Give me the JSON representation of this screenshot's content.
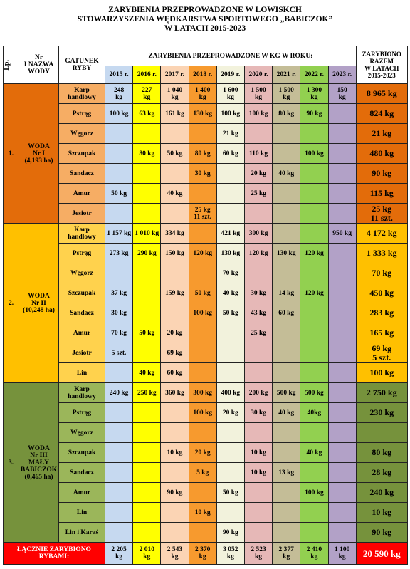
{
  "header": {
    "title": [
      "ZARYBIENIA PRZEPROWADZONE W ŁOWISKCH",
      "STOWARZYSZENIA WĘDKARSTWA SPORTOWEGO „BABICZOK”",
      "W LATACH 2015-2023"
    ]
  },
  "table": {
    "columns": {
      "lp": "Lp.",
      "water": "Nr\nI NAZWA\nWODY",
      "species": "GATUNEK\nRYBY",
      "years_title": "ZARYBIENIA PRZEPROWADZONE W KG W ROKU:",
      "total": "ZARYBIONO\nRAZEM\nW LATACH\n2015-2023"
    },
    "years": [
      "2015 r.",
      "2016 r.",
      "2017 r.",
      "2018 r.",
      "2019 r.",
      "2020 r.",
      "2021 r.",
      "2022 r.",
      "2023 r."
    ],
    "year_colors": [
      "#c6d9f0",
      "#ffff00",
      "#fbd4b4",
      "#f79a2e",
      "#f2f2dc",
      "#e6b8b7",
      "#c4bd97",
      "#92d050",
      "#b2a1c7"
    ],
    "sections": [
      {
        "lp": "1.",
        "water": "WODA\nNr I\n(4,193 ha)",
        "color": "#e36c0a",
        "species_color": "#f6ad64",
        "total_color": "#e36c0a",
        "rows": [
          {
            "species": "Karp\nhandlowy",
            "values": [
              "248\nkg",
              "227\nkg",
              "1 040\nkg",
              "1 400\nkg",
              "1 600\nkg",
              "1 500\nkg",
              "1 500\nkg",
              "1 300\nkg",
              "150\nkg"
            ],
            "total": "8 965 kg"
          },
          {
            "species": "Pstrąg",
            "values": [
              "100 kg",
              "63 kg",
              "161 kg",
              "130 kg",
              "100 kg",
              "100 kg",
              "80 kg",
              "90 kg",
              null
            ],
            "total": "824 kg"
          },
          {
            "species": "Węgorz",
            "values": [
              null,
              null,
              null,
              null,
              "21 kg",
              null,
              null,
              null,
              null
            ],
            "total": "21 kg"
          },
          {
            "species": "Szczupak",
            "values": [
              null,
              "80 kg",
              "50 kg",
              "80 kg",
              "60 kg",
              "110 kg",
              null,
              "100 kg",
              null
            ],
            "total": "480 kg"
          },
          {
            "species": "Sandacz",
            "values": [
              null,
              null,
              null,
              "30 kg",
              null,
              "20 kg",
              "40 kg",
              null,
              null
            ],
            "total": "90 kg"
          },
          {
            "species": "Amur",
            "values": [
              "50 kg",
              null,
              "40 kg",
              null,
              null,
              "25 kg",
              null,
              null,
              null
            ],
            "total": "115 kg"
          },
          {
            "species": "Jesiotr",
            "values": [
              null,
              null,
              null,
              "25 kg\n11 szt.",
              null,
              null,
              null,
              null,
              null
            ],
            "total": "25 kg\n11 szt."
          }
        ]
      },
      {
        "lp": "2.",
        "water": "WODA\nNr II\n(10,248 ha)",
        "color": "#ffc000",
        "species_color": "#ffd24d",
        "total_color": "#ffc000",
        "rows": [
          {
            "species": "Karp\nhandlowy",
            "values": [
              "1 157 kg",
              "1 010 kg",
              "334 kg",
              null,
              "421 kg",
              "300 kg",
              null,
              null,
              "950 kg"
            ],
            "total": "4 172 kg"
          },
          {
            "species": "Pstrąg",
            "values": [
              "273 kg",
              "290 kg",
              "150 kg",
              "120 kg",
              "130 kg",
              "120 kg",
              "130 kg",
              "120 kg",
              null
            ],
            "total": "1 333 kg"
          },
          {
            "species": "Węgorz",
            "values": [
              null,
              null,
              null,
              null,
              "70 kg",
              null,
              null,
              null,
              null
            ],
            "total": "70 kg"
          },
          {
            "species": "Szczupak",
            "values": [
              "37 kg",
              null,
              "159 kg",
              "50 kg",
              "40 kg",
              "30 kg",
              "14 kg",
              "120 kg",
              null
            ],
            "total": "450 kg"
          },
          {
            "species": "Sandacz",
            "values": [
              "30 kg",
              null,
              null,
              "100 kg",
              "50 kg",
              "43 kg",
              "60 kg",
              null,
              null
            ],
            "total": "283 kg"
          },
          {
            "species": "Amur",
            "values": [
              "70 kg",
              "50 kg",
              "20 kg",
              null,
              null,
              "25 kg",
              null,
              null,
              null
            ],
            "total": "165 kg"
          },
          {
            "species": "Jesiotr",
            "values": [
              "5 szt.",
              null,
              "69 kg",
              null,
              null,
              null,
              null,
              null,
              null
            ],
            "total": "69 kg\n5 szt."
          },
          {
            "species": "Lin",
            "values": [
              null,
              "40 kg",
              "60 kg",
              null,
              null,
              null,
              null,
              null,
              null
            ],
            "total": "100 kg"
          }
        ]
      },
      {
        "lp": "3.",
        "water": "WODA\nNr III\nMAŁY\nBABICZOK\n(0,465 ha)",
        "color": "#76923c",
        "species_color": "#9bb65a",
        "total_color": "#76923c",
        "rows": [
          {
            "species": "Karp\nhandlowy",
            "values": [
              "240 kg",
              "250 kg",
              "360 kg",
              "300 kg",
              "400 kg",
              "200 kg",
              "500 kg",
              "500 kg",
              null
            ],
            "total": "2 750 kg"
          },
          {
            "species": "Pstrąg",
            "values": [
              null,
              null,
              null,
              "100 kg",
              "20 kg",
              "30 kg",
              "40 kg",
              "40kg",
              null
            ],
            "total": "230 kg"
          },
          {
            "species": "Węgorz",
            "values": [
              null,
              null,
              null,
              null,
              null,
              null,
              null,
              null,
              null
            ],
            "total": null
          },
          {
            "species": "Szczupak",
            "values": [
              null,
              null,
              "10 kg",
              "20 kg",
              null,
              "10 kg",
              null,
              "40 kg",
              null
            ],
            "total": "80 kg"
          },
          {
            "species": "Sandacz",
            "values": [
              null,
              null,
              null,
              "5 kg",
              null,
              "10 kg",
              "13 kg",
              null,
              null
            ],
            "total": "28 kg"
          },
          {
            "species": "Amur",
            "values": [
              null,
              null,
              "90 kg",
              null,
              "50 kg",
              null,
              null,
              "100 kg",
              null
            ],
            "total": "240 kg"
          },
          {
            "species": "Lin",
            "values": [
              null,
              null,
              null,
              "10 kg",
              null,
              null,
              null,
              null,
              null
            ],
            "total": "10 kg"
          },
          {
            "species": "Lin i Karaś",
            "values": [
              null,
              null,
              null,
              null,
              "90 kg",
              null,
              null,
              null,
              null
            ],
            "total": "90 kg"
          }
        ]
      }
    ],
    "footer": {
      "label": "ŁĄCZNIE ZARYBIONO\nRYBAMI:",
      "color": "#ff0000",
      "values": [
        "2 205\nkg",
        "2 010\nkg",
        "2 543\nkg",
        "2 370\nkg",
        "3 052\nkg",
        "2 523\nkg",
        "2 377\nkg",
        "2 410\nkg",
        "1 100\nkg"
      ],
      "total": "20 590 kg"
    }
  }
}
